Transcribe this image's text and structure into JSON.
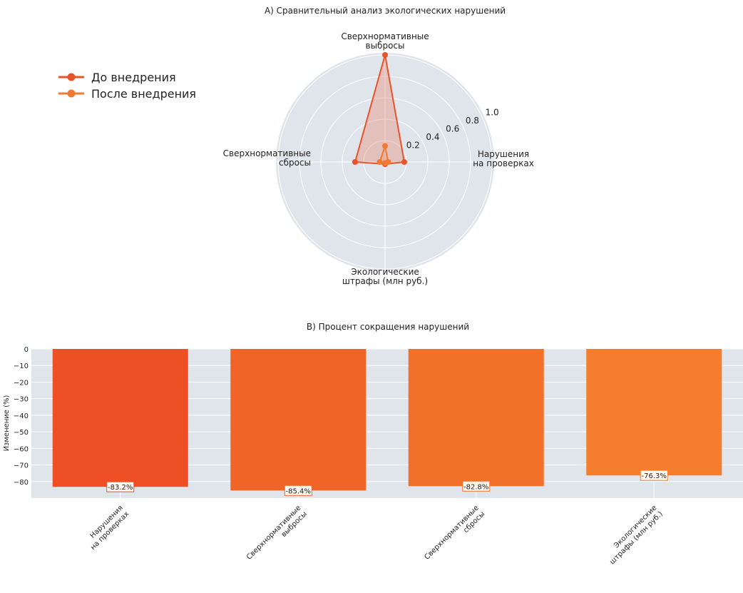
{
  "chart_data": [
    {
      "type": "radar",
      "title": "A) Сравнительный анализ экологических нарушений",
      "axes": [
        "Сверхнормативные\nвыбросы",
        "Сверхнормативные\nсбросы",
        "Экологические\nштрафы (млн руб.)",
        "Нарушения\nна проверках"
      ],
      "radial_ticks": [
        "0.2",
        "0.4",
        "0.6",
        "0.8",
        "1.0"
      ],
      "rlim": [
        0,
        1.0
      ],
      "series": [
        {
          "name": "До внедрения",
          "color": "#E8542A",
          "values": [
            1.0,
            0.28,
            0.02,
            0.18
          ]
        },
        {
          "name": "После внедрения",
          "color": "#F07A34",
          "values": [
            0.15,
            0.05,
            0.01,
            0.03
          ]
        }
      ],
      "legend_position": "top-left"
    },
    {
      "type": "bar",
      "title": "B) Процент сокращения нарушений",
      "ylabel": "Изменение (%)",
      "categories": [
        "Нарушения\nна проверках",
        "Сверхнормативные\nвыбросы",
        "Сверхнормативные\nсбросы",
        "Экологические\nштрафы (млн руб.)"
      ],
      "values": [
        -83.2,
        -85.4,
        -82.8,
        -76.3
      ],
      "data_labels": [
        "-83.2%",
        "-85.4%",
        "-82.8%",
        "-76.3%"
      ],
      "colors": [
        "#EE4F24",
        "#F06428",
        "#F2712A",
        "#F47E2D"
      ],
      "yticks": [
        "0",
        "−10",
        "−20",
        "−30",
        "−40",
        "−50",
        "−60",
        "−70",
        "−80"
      ],
      "ylim": [
        -90,
        0
      ],
      "grid": true
    }
  ]
}
